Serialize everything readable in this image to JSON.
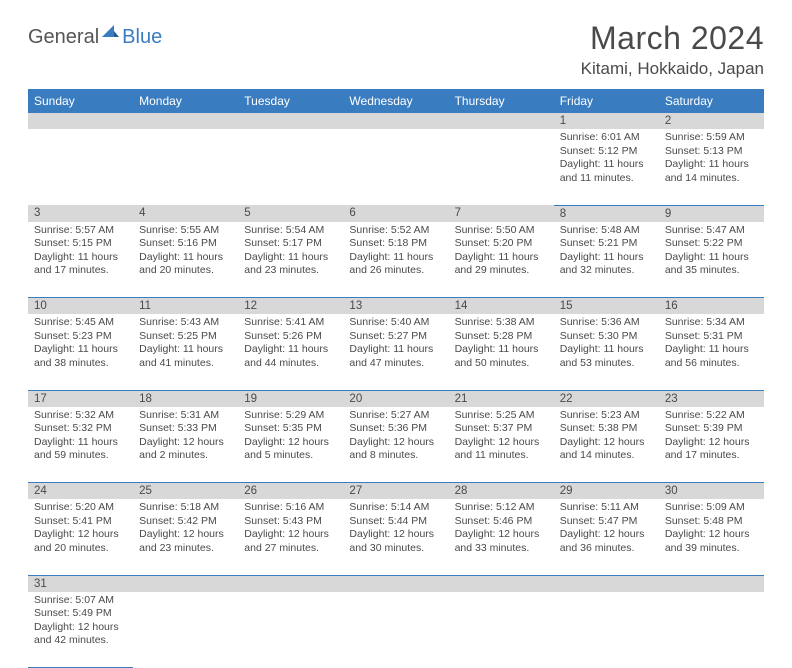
{
  "logo": {
    "textA": "General",
    "textB": "Blue"
  },
  "title": "March 2024",
  "location": "Kitami, Hokkaido, Japan",
  "colors": {
    "header_bg": "#3a7cc0",
    "header_text": "#ffffff",
    "daynum_bg": "#d8d8d8",
    "border": "#3a7cc0",
    "text": "#4a4a4a",
    "page_bg": "#ffffff"
  },
  "fonts": {
    "title_size": 32,
    "location_size": 17,
    "weekday_size": 12,
    "daynum_size": 11.5,
    "cell_size": 10.5
  },
  "weekdays": [
    "Sunday",
    "Monday",
    "Tuesday",
    "Wednesday",
    "Thursday",
    "Friday",
    "Saturday"
  ],
  "weeks": [
    [
      null,
      null,
      null,
      null,
      null,
      {
        "n": "1",
        "sr": "Sunrise: 6:01 AM",
        "ss": "Sunset: 5:12 PM",
        "d1": "Daylight: 11 hours",
        "d2": "and 11 minutes."
      },
      {
        "n": "2",
        "sr": "Sunrise: 5:59 AM",
        "ss": "Sunset: 5:13 PM",
        "d1": "Daylight: 11 hours",
        "d2": "and 14 minutes."
      }
    ],
    [
      {
        "n": "3",
        "sr": "Sunrise: 5:57 AM",
        "ss": "Sunset: 5:15 PM",
        "d1": "Daylight: 11 hours",
        "d2": "and 17 minutes."
      },
      {
        "n": "4",
        "sr": "Sunrise: 5:55 AM",
        "ss": "Sunset: 5:16 PM",
        "d1": "Daylight: 11 hours",
        "d2": "and 20 minutes."
      },
      {
        "n": "5",
        "sr": "Sunrise: 5:54 AM",
        "ss": "Sunset: 5:17 PM",
        "d1": "Daylight: 11 hours",
        "d2": "and 23 minutes."
      },
      {
        "n": "6",
        "sr": "Sunrise: 5:52 AM",
        "ss": "Sunset: 5:18 PM",
        "d1": "Daylight: 11 hours",
        "d2": "and 26 minutes."
      },
      {
        "n": "7",
        "sr": "Sunrise: 5:50 AM",
        "ss": "Sunset: 5:20 PM",
        "d1": "Daylight: 11 hours",
        "d2": "and 29 minutes."
      },
      {
        "n": "8",
        "sr": "Sunrise: 5:48 AM",
        "ss": "Sunset: 5:21 PM",
        "d1": "Daylight: 11 hours",
        "d2": "and 32 minutes."
      },
      {
        "n": "9",
        "sr": "Sunrise: 5:47 AM",
        "ss": "Sunset: 5:22 PM",
        "d1": "Daylight: 11 hours",
        "d2": "and 35 minutes."
      }
    ],
    [
      {
        "n": "10",
        "sr": "Sunrise: 5:45 AM",
        "ss": "Sunset: 5:23 PM",
        "d1": "Daylight: 11 hours",
        "d2": "and 38 minutes."
      },
      {
        "n": "11",
        "sr": "Sunrise: 5:43 AM",
        "ss": "Sunset: 5:25 PM",
        "d1": "Daylight: 11 hours",
        "d2": "and 41 minutes."
      },
      {
        "n": "12",
        "sr": "Sunrise: 5:41 AM",
        "ss": "Sunset: 5:26 PM",
        "d1": "Daylight: 11 hours",
        "d2": "and 44 minutes."
      },
      {
        "n": "13",
        "sr": "Sunrise: 5:40 AM",
        "ss": "Sunset: 5:27 PM",
        "d1": "Daylight: 11 hours",
        "d2": "and 47 minutes."
      },
      {
        "n": "14",
        "sr": "Sunrise: 5:38 AM",
        "ss": "Sunset: 5:28 PM",
        "d1": "Daylight: 11 hours",
        "d2": "and 50 minutes."
      },
      {
        "n": "15",
        "sr": "Sunrise: 5:36 AM",
        "ss": "Sunset: 5:30 PM",
        "d1": "Daylight: 11 hours",
        "d2": "and 53 minutes."
      },
      {
        "n": "16",
        "sr": "Sunrise: 5:34 AM",
        "ss": "Sunset: 5:31 PM",
        "d1": "Daylight: 11 hours",
        "d2": "and 56 minutes."
      }
    ],
    [
      {
        "n": "17",
        "sr": "Sunrise: 5:32 AM",
        "ss": "Sunset: 5:32 PM",
        "d1": "Daylight: 11 hours",
        "d2": "and 59 minutes."
      },
      {
        "n": "18",
        "sr": "Sunrise: 5:31 AM",
        "ss": "Sunset: 5:33 PM",
        "d1": "Daylight: 12 hours",
        "d2": "and 2 minutes."
      },
      {
        "n": "19",
        "sr": "Sunrise: 5:29 AM",
        "ss": "Sunset: 5:35 PM",
        "d1": "Daylight: 12 hours",
        "d2": "and 5 minutes."
      },
      {
        "n": "20",
        "sr": "Sunrise: 5:27 AM",
        "ss": "Sunset: 5:36 PM",
        "d1": "Daylight: 12 hours",
        "d2": "and 8 minutes."
      },
      {
        "n": "21",
        "sr": "Sunrise: 5:25 AM",
        "ss": "Sunset: 5:37 PM",
        "d1": "Daylight: 12 hours",
        "d2": "and 11 minutes."
      },
      {
        "n": "22",
        "sr": "Sunrise: 5:23 AM",
        "ss": "Sunset: 5:38 PM",
        "d1": "Daylight: 12 hours",
        "d2": "and 14 minutes."
      },
      {
        "n": "23",
        "sr": "Sunrise: 5:22 AM",
        "ss": "Sunset: 5:39 PM",
        "d1": "Daylight: 12 hours",
        "d2": "and 17 minutes."
      }
    ],
    [
      {
        "n": "24",
        "sr": "Sunrise: 5:20 AM",
        "ss": "Sunset: 5:41 PM",
        "d1": "Daylight: 12 hours",
        "d2": "and 20 minutes."
      },
      {
        "n": "25",
        "sr": "Sunrise: 5:18 AM",
        "ss": "Sunset: 5:42 PM",
        "d1": "Daylight: 12 hours",
        "d2": "and 23 minutes."
      },
      {
        "n": "26",
        "sr": "Sunrise: 5:16 AM",
        "ss": "Sunset: 5:43 PM",
        "d1": "Daylight: 12 hours",
        "d2": "and 27 minutes."
      },
      {
        "n": "27",
        "sr": "Sunrise: 5:14 AM",
        "ss": "Sunset: 5:44 PM",
        "d1": "Daylight: 12 hours",
        "d2": "and 30 minutes."
      },
      {
        "n": "28",
        "sr": "Sunrise: 5:12 AM",
        "ss": "Sunset: 5:46 PM",
        "d1": "Daylight: 12 hours",
        "d2": "and 33 minutes."
      },
      {
        "n": "29",
        "sr": "Sunrise: 5:11 AM",
        "ss": "Sunset: 5:47 PM",
        "d1": "Daylight: 12 hours",
        "d2": "and 36 minutes."
      },
      {
        "n": "30",
        "sr": "Sunrise: 5:09 AM",
        "ss": "Sunset: 5:48 PM",
        "d1": "Daylight: 12 hours",
        "d2": "and 39 minutes."
      }
    ],
    [
      {
        "n": "31",
        "sr": "Sunrise: 5:07 AM",
        "ss": "Sunset: 5:49 PM",
        "d1": "Daylight: 12 hours",
        "d2": "and 42 minutes."
      },
      null,
      null,
      null,
      null,
      null,
      null
    ]
  ]
}
